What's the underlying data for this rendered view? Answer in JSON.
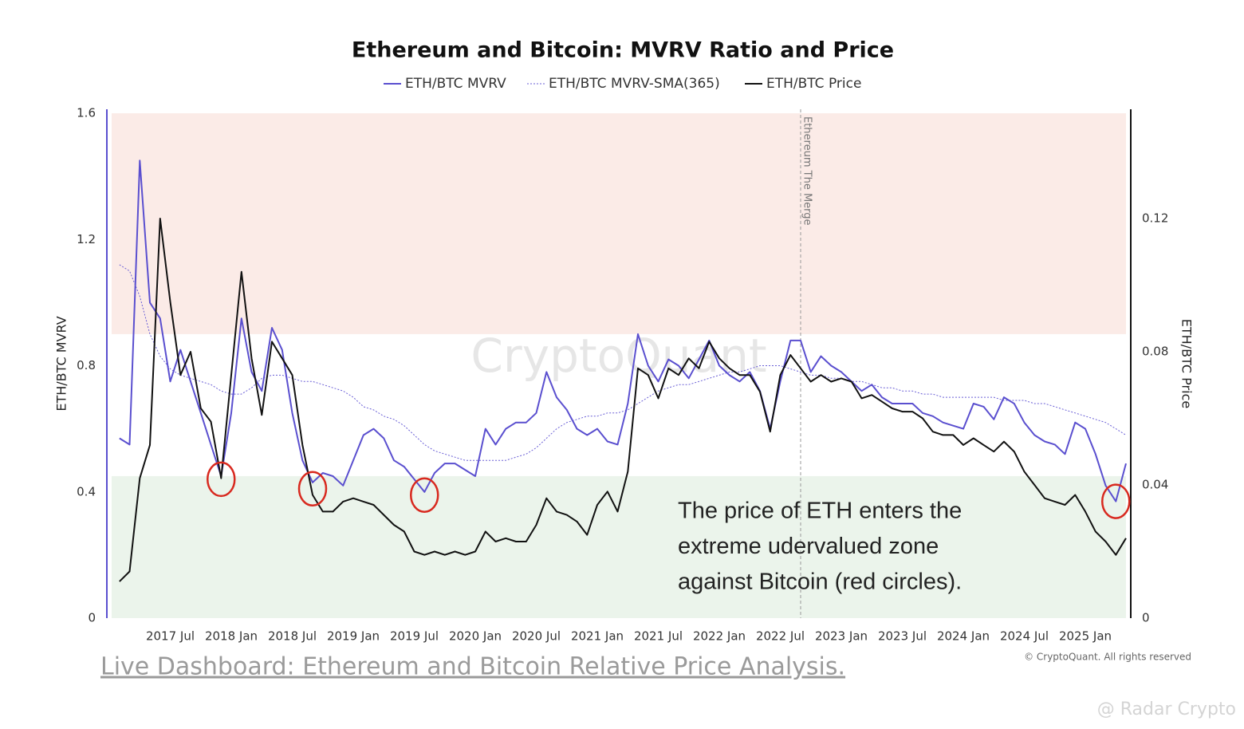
{
  "chart_data": {
    "type": "line",
    "title": "Ethereum and Bitcoin: MVRV Ratio and Price",
    "y_label": "ETH/BTC MVRV",
    "y2_label": "ETH/BTC Price",
    "watermark": "CryptoQuant",
    "legend": "top",
    "grid": false,
    "x": [
      "2017 Feb",
      "2017 Mar",
      "2017 Apr",
      "2017 May",
      "2017 Jun",
      "2017 Jul",
      "2017 Aug",
      "2017 Sep",
      "2017 Oct",
      "2017 Nov",
      "2017 Dec",
      "2018 Jan",
      "2018 Feb",
      "2018 Mar",
      "2018 Apr",
      "2018 May",
      "2018 Jun",
      "2018 Jul",
      "2018 Aug",
      "2018 Sep",
      "2018 Oct",
      "2018 Nov",
      "2018 Dec",
      "2019 Jan",
      "2019 Feb",
      "2019 Mar",
      "2019 Apr",
      "2019 May",
      "2019 Jun",
      "2019 Jul",
      "2019 Aug",
      "2019 Sep",
      "2019 Oct",
      "2019 Nov",
      "2019 Dec",
      "2020 Jan",
      "2020 Feb",
      "2020 Mar",
      "2020 Apr",
      "2020 May",
      "2020 Jun",
      "2020 Jul",
      "2020 Aug",
      "2020 Sep",
      "2020 Oct",
      "2020 Nov",
      "2020 Dec",
      "2021 Jan",
      "2021 Feb",
      "2021 Mar",
      "2021 Apr",
      "2021 May",
      "2021 Jun",
      "2021 Jul",
      "2021 Aug",
      "2021 Sep",
      "2021 Oct",
      "2021 Nov",
      "2021 Dec",
      "2022 Jan",
      "2022 Feb",
      "2022 Mar",
      "2022 Apr",
      "2022 May",
      "2022 Jun",
      "2022 Jul",
      "2022 Aug",
      "2022 Sep",
      "2022 Oct",
      "2022 Nov",
      "2022 Dec",
      "2023 Jan",
      "2023 Feb",
      "2023 Mar",
      "2023 Apr",
      "2023 May",
      "2023 Jun",
      "2023 Jul",
      "2023 Aug",
      "2023 Sep",
      "2023 Oct",
      "2023 Nov",
      "2023 Dec",
      "2024 Jan",
      "2024 Feb",
      "2024 Mar",
      "2024 Apr",
      "2024 May",
      "2024 Jun",
      "2024 Jul",
      "2024 Aug",
      "2024 Sep",
      "2024 Oct",
      "2024 Nov",
      "2024 Dec",
      "2025 Jan",
      "2025 Feb",
      "2025 Mar",
      "2025 Apr",
      "2025 May"
    ],
    "series": [
      {
        "name": "ETH/BTC MVRV",
        "color": "#5a4fcf",
        "style": "solid",
        "values": [
          0.57,
          0.55,
          1.45,
          1.0,
          0.95,
          0.75,
          0.85,
          0.75,
          0.65,
          0.55,
          0.45,
          0.65,
          0.95,
          0.78,
          0.72,
          0.92,
          0.85,
          0.65,
          0.5,
          0.43,
          0.46,
          0.45,
          0.42,
          0.5,
          0.58,
          0.6,
          0.57,
          0.5,
          0.48,
          0.44,
          0.4,
          0.46,
          0.49,
          0.49,
          0.47,
          0.45,
          0.6,
          0.55,
          0.6,
          0.62,
          0.62,
          0.65,
          0.78,
          0.7,
          0.66,
          0.6,
          0.58,
          0.6,
          0.56,
          0.55,
          0.68,
          0.9,
          0.8,
          0.75,
          0.82,
          0.8,
          0.76,
          0.82,
          0.88,
          0.8,
          0.77,
          0.75,
          0.78,
          0.72,
          0.6,
          0.75,
          0.88,
          0.88,
          0.78,
          0.83,
          0.8,
          0.78,
          0.75,
          0.72,
          0.74,
          0.7,
          0.68,
          0.68,
          0.68,
          0.65,
          0.64,
          0.62,
          0.61,
          0.6,
          0.68,
          0.67,
          0.63,
          0.7,
          0.68,
          0.62,
          0.58,
          0.56,
          0.55,
          0.52,
          0.62,
          0.6,
          0.52,
          0.42,
          0.37,
          0.49
        ]
      },
      {
        "name": "ETH/BTC MVRV-SMA(365)",
        "color": "#6a5fd6",
        "style": "dotted",
        "values": [
          1.12,
          1.1,
          1.02,
          0.9,
          0.83,
          0.79,
          0.77,
          0.76,
          0.75,
          0.74,
          0.72,
          0.71,
          0.71,
          0.73,
          0.76,
          0.77,
          0.77,
          0.76,
          0.75,
          0.75,
          0.74,
          0.73,
          0.72,
          0.7,
          0.67,
          0.66,
          0.64,
          0.63,
          0.61,
          0.58,
          0.55,
          0.53,
          0.52,
          0.51,
          0.5,
          0.5,
          0.5,
          0.5,
          0.5,
          0.51,
          0.52,
          0.54,
          0.57,
          0.6,
          0.62,
          0.63,
          0.64,
          0.64,
          0.65,
          0.65,
          0.66,
          0.68,
          0.7,
          0.72,
          0.73,
          0.74,
          0.74,
          0.75,
          0.76,
          0.77,
          0.78,
          0.78,
          0.79,
          0.8,
          0.8,
          0.8,
          0.79,
          0.78,
          0.77,
          0.77,
          0.76,
          0.76,
          0.75,
          0.75,
          0.74,
          0.73,
          0.73,
          0.72,
          0.72,
          0.71,
          0.71,
          0.7,
          0.7,
          0.7,
          0.7,
          0.7,
          0.7,
          0.69,
          0.69,
          0.69,
          0.68,
          0.68,
          0.67,
          0.66,
          0.65,
          0.64,
          0.63,
          0.62,
          0.6,
          0.58
        ]
      },
      {
        "name": "ETH/BTC Price",
        "color": "#111111",
        "style": "solid",
        "axis": "y2",
        "values": [
          0.011,
          0.014,
          0.042,
          0.052,
          0.12,
          0.095,
          0.073,
          0.08,
          0.063,
          0.059,
          0.042,
          0.073,
          0.104,
          0.078,
          0.061,
          0.083,
          0.078,
          0.073,
          0.052,
          0.037,
          0.032,
          0.032,
          0.035,
          0.036,
          0.035,
          0.034,
          0.031,
          0.028,
          0.026,
          0.02,
          0.019,
          0.02,
          0.019,
          0.02,
          0.019,
          0.02,
          0.026,
          0.023,
          0.024,
          0.023,
          0.023,
          0.028,
          0.036,
          0.032,
          0.031,
          0.029,
          0.025,
          0.034,
          0.038,
          0.032,
          0.044,
          0.075,
          0.073,
          0.066,
          0.075,
          0.073,
          0.078,
          0.075,
          0.083,
          0.078,
          0.075,
          0.073,
          0.073,
          0.068,
          0.056,
          0.073,
          0.079,
          0.075,
          0.071,
          0.073,
          0.071,
          0.072,
          0.071,
          0.066,
          0.067,
          0.065,
          0.063,
          0.062,
          0.062,
          0.06,
          0.056,
          0.055,
          0.055,
          0.052,
          0.054,
          0.052,
          0.05,
          0.053,
          0.05,
          0.044,
          0.04,
          0.036,
          0.035,
          0.034,
          0.037,
          0.032,
          0.026,
          0.023,
          0.019,
          0.024
        ]
      }
    ],
    "xlim": [
      "2017 Jan",
      "2025 May"
    ],
    "xticks": [
      "2017 Jul",
      "2018 Jan",
      "2018 Jul",
      "2019 Jan",
      "2019 Jul",
      "2020 Jan",
      "2020 Jul",
      "2021 Jan",
      "2021 Jul",
      "2022 Jan",
      "2022 Jul",
      "2023 Jan",
      "2023 Jul",
      "2024 Jan",
      "2024 Jul",
      "2025 Jan"
    ],
    "ylim": [
      0,
      1.6
    ],
    "yticks": [
      0,
      0.4,
      0.8,
      1.2,
      1.6
    ],
    "y2lim": [
      0,
      0.1528
    ],
    "y2ticks": [
      0,
      0.04,
      0.08,
      0.12
    ],
    "zones": [
      {
        "from": 0.9,
        "to": 1.6,
        "color": "#fbebe7"
      },
      {
        "from": 0,
        "to": 0.45,
        "color": "#ebf4eb"
      }
    ],
    "event": {
      "x": "2022 Sep",
      "label": "Ethereum The Merge"
    },
    "highlights": [
      {
        "x": "2017 Dec",
        "y": 0.44
      },
      {
        "x": "2018 Sep",
        "y": 0.41
      },
      {
        "x": "2019 Aug",
        "y": 0.39
      },
      {
        "x": "2025 Apr",
        "y": 0.37
      }
    ],
    "highlight_color": "#d8291f",
    "annotation": [
      "The price of  ETH enters the",
      "extreme udervalued zone",
      "against Bitcoin (red circles)."
    ],
    "copyright": "© CryptoQuant. All rights reserved"
  },
  "link": "Live Dashboard: Ethereum and Bitcoin Relative Price Analysis.",
  "credit": "@ Radar Crypto"
}
